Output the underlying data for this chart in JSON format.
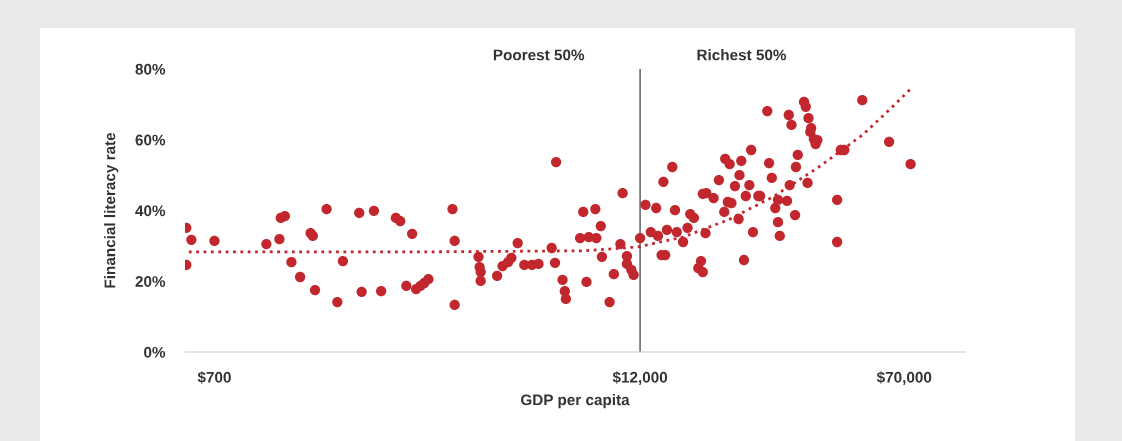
{
  "chart_data": {
    "type": "scatter",
    "xlabel": "GDP per capita",
    "ylabel": "Financial literacy rate",
    "log": "x",
    "xlim": [
      575,
      105000
    ],
    "ylim": [
      0,
      80
    ],
    "xticks": [
      {
        "value": 700,
        "label": "$700"
      },
      {
        "value": 12000,
        "label": "$12,000"
      },
      {
        "value": 70000,
        "label": "$70,000"
      }
    ],
    "yticks": [
      {
        "value": 0,
        "label": "0%"
      },
      {
        "value": 20,
        "label": "20%"
      },
      {
        "value": 40,
        "label": "40%"
      },
      {
        "value": 60,
        "label": "60%"
      },
      {
        "value": 80,
        "label": "80%"
      }
    ],
    "grid": false,
    "legend": false,
    "marker": "circle",
    "annotations": [
      "Poorest 50%",
      "Richest 50%"
    ],
    "ref_lines": [
      {
        "axis": "x",
        "value": 12000,
        "label": null,
        "color": "#7a7a7a"
      }
    ],
    "series": [
      {
        "color": "#c1272d",
        "x": [
          580,
          600,
          580,
          700,
          990,
          1090,
          1120,
          1080,
          1170,
          1240,
          1330,
          1350,
          1370,
          1480,
          1590,
          1650,
          1840,
          1870,
          2030,
          2130,
          2350,
          2420,
          2520,
          2620,
          2690,
          2770,
          2840,
          2920,
          3430,
          3480,
          3480,
          4080,
          4110,
          4140,
          4140,
          4620,
          4790,
          4970,
          5080,
          5300,
          5540,
          5830,
          6090,
          6650,
          6800,
          6850,
          7150,
          7260,
          7310,
          8040,
          8210,
          8390,
          8520,
          8900,
          8960,
          9230,
          9300,
          9790,
          10070,
          10520,
          10990,
          10990,
          11320,
          11490,
          10680,
          12000,
          12440,
          12890,
          13360,
          13520,
          13850,
          14020,
          14190,
          14360,
          14880,
          15150,
          15330,
          15990,
          16470,
          16770,
          17180,
          17700,
          18020,
          18240,
          18240,
          18570,
          18680,
          19600,
          20310,
          21050,
          21180,
          21560,
          21820,
          22080,
          22610,
          23160,
          23300,
          23580,
          24010,
          24300,
          24890,
          25190,
          25500,
          26430,
          26740,
          28050,
          28390,
          28910,
          29590,
          30130,
          30130,
          30490,
          32000,
          32380,
          32580,
          32970,
          33770,
          33970,
          34380,
          35850,
          36280,
          36710,
          36940,
          37380,
          37600,
          38280,
          38740,
          39200,
          44720,
          44720,
          45820,
          46920,
          52880,
          63260,
          73020
        ],
        "values": [
          35.1,
          31.7,
          24.6,
          31.4,
          30.5,
          37.9,
          38.4,
          31.9,
          25.4,
          21.2,
          33.6,
          32.8,
          17.5,
          40.4,
          14.1,
          25.7,
          39.3,
          17.0,
          39.9,
          17.2,
          37.9,
          37.0,
          18.7,
          33.4,
          17.8,
          18.7,
          19.5,
          20.6,
          40.4,
          31.4,
          13.3,
          26.9,
          24.0,
          22.6,
          20.1,
          21.5,
          24.3,
          25.4,
          26.6,
          30.8,
          24.6,
          24.6,
          24.9,
          29.4,
          25.2,
          53.7,
          20.4,
          17.2,
          15.0,
          32.2,
          39.6,
          19.8,
          32.5,
          40.4,
          32.2,
          35.6,
          26.9,
          14.1,
          22.0,
          30.5,
          27.1,
          24.9,
          23.2,
          21.8,
          44.9,
          32.2,
          41.6,
          33.9,
          40.7,
          32.8,
          27.4,
          48.1,
          27.4,
          34.5,
          52.3,
          40.1,
          33.9,
          31.1,
          35.1,
          39.0,
          37.9,
          23.7,
          25.7,
          22.6,
          44.7,
          33.6,
          44.9,
          43.5,
          48.6,
          39.6,
          54.6,
          42.4,
          53.1,
          42.1,
          46.9,
          37.6,
          50.0,
          54.0,
          26.0,
          44.1,
          47.2,
          57.1,
          33.9,
          44.1,
          44.1,
          68.1,
          53.4,
          49.2,
          40.7,
          43.0,
          36.7,
          32.8,
          42.7,
          67.0,
          47.2,
          64.2,
          38.7,
          52.3,
          55.7,
          70.7,
          69.3,
          47.8,
          66.1,
          62.2,
          63.3,
          60.2,
          58.8,
          59.9,
          43.0,
          31.1,
          57.1,
          57.1,
          71.2,
          59.4,
          53.1
        ]
      },
      {
        "type": "line",
        "color": "#c1272d",
        "line_style": "dotted",
        "marker": "none",
        "x": [
          590,
          2750,
          8210,
          11820,
          15990,
          21560,
          29080,
          39200,
          52880,
          63260,
          73450
        ],
        "values": [
          28.3,
          28.3,
          28.6,
          29.7,
          32.5,
          37.3,
          43.8,
          52.0,
          61.3,
          68.4,
          74.6
        ]
      }
    ]
  }
}
